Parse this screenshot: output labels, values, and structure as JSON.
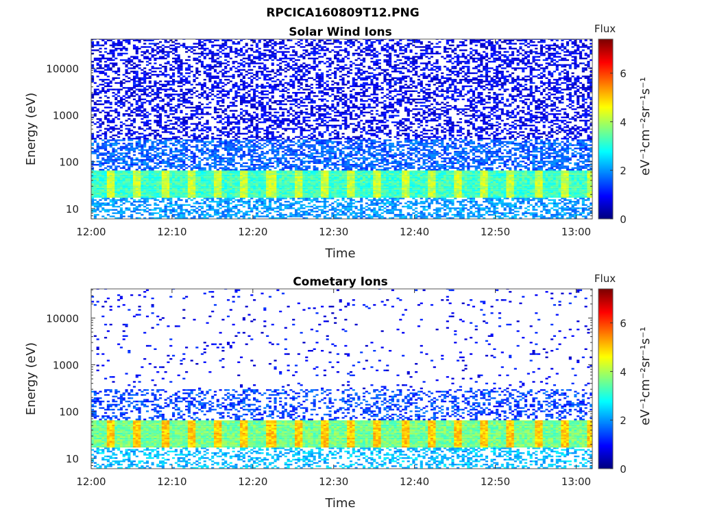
{
  "figure": {
    "title": "RPCICA160809T12.PNG"
  },
  "colors": {
    "jet_low": "#00008f",
    "jet_mid": "#7fff7f",
    "jet_high": "#800000"
  },
  "chart_data": [
    {
      "type": "heatmap",
      "title": "Solar Wind Ions",
      "xlabel": "Time",
      "ylabel": "Energy (eV)",
      "x_ticks": [
        "12:00",
        "12:10",
        "12:20",
        "12:30",
        "12:40",
        "12:50",
        "13:00"
      ],
      "x_range": [
        "12:00",
        "13:02"
      ],
      "y_scale": "log",
      "y_ticks": [
        "10",
        "100",
        "1000",
        "10000"
      ],
      "y_range": [
        6,
        42000
      ],
      "colorbar": {
        "label": "Flux",
        "units": "eV⁻¹cm⁻²sr⁻¹s⁻¹",
        "ticks": [
          "0",
          "2",
          "4",
          "6"
        ],
        "range": [
          0,
          7.4
        ]
      },
      "bands": [
        {
          "energy_min": 6,
          "energy_max": 17,
          "flux": 2.0,
          "coverage": 0.55
        },
        {
          "energy_min": 17,
          "energy_max": 65,
          "flux": 3.2,
          "coverage": 1.0
        },
        {
          "energy_min": 65,
          "energy_max": 300,
          "flux": 1.6,
          "coverage": 0.6
        },
        {
          "energy_min": 300,
          "energy_max": 42000,
          "flux": 0.8,
          "coverage": 0.45
        }
      ],
      "periodic_peaks": {
        "flux": 4.2,
        "interval_min": 3.3
      }
    },
    {
      "type": "heatmap",
      "title": "Cometary Ions",
      "xlabel": "Time",
      "ylabel": "Energy (eV)",
      "x_ticks": [
        "12:00",
        "12:10",
        "12:20",
        "12:30",
        "12:40",
        "12:50",
        "13:00"
      ],
      "x_range": [
        "12:00",
        "13:02"
      ],
      "y_scale": "log",
      "y_ticks": [
        "10",
        "100",
        "1000",
        "10000"
      ],
      "y_range": [
        6,
        42000
      ],
      "colorbar": {
        "label": "Flux",
        "units": "eV⁻¹cm⁻²sr⁻¹s⁻¹",
        "ticks": [
          "0",
          "2",
          "4",
          "6"
        ],
        "range": [
          0,
          7.4
        ]
      },
      "bands": [
        {
          "energy_min": 6,
          "energy_max": 17,
          "flux": 2.3,
          "coverage": 0.4
        },
        {
          "energy_min": 17,
          "energy_max": 65,
          "flux": 3.6,
          "coverage": 1.0
        },
        {
          "energy_min": 65,
          "energy_max": 300,
          "flux": 1.4,
          "coverage": 0.35
        },
        {
          "energy_min": 300,
          "energy_max": 42000,
          "flux": 0.9,
          "coverage": 0.04
        }
      ],
      "periodic_peaks": {
        "flux": 5.0,
        "interval_min": 3.3
      }
    }
  ]
}
